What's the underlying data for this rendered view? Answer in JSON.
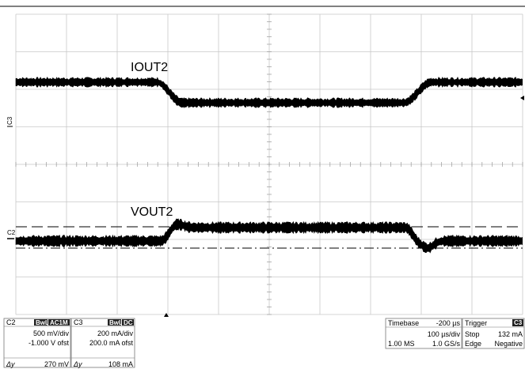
{
  "traces": {
    "iout": {
      "label": "IOUT2",
      "channel": "C3"
    },
    "vout": {
      "label": "VOUT2",
      "channel": "C2"
    }
  },
  "panels": {
    "c2": {
      "title": "C2",
      "badge1": "BwL",
      "badge2": "AC1M",
      "scale": "500 mV/div",
      "offset": "-1.000 V ofst",
      "dy_label": "Δy",
      "dy_value": "270 mV"
    },
    "c3": {
      "title": "C3",
      "badge1": "BwL",
      "badge2": "DC",
      "scale": "200 mA/div",
      "offset": "200.0 mA ofst",
      "dy_label": "Δy",
      "dy_value": "108 mA"
    },
    "timebase": {
      "title": "Timebase",
      "delay": "-200 µs",
      "time_per_div": "100 µs/div",
      "samples": "1.00 MS",
      "rate": "1.0 GS/s"
    },
    "trigger": {
      "title": "Trigger",
      "channel_badge": "C3",
      "mode": "Stop",
      "level": "132 mA",
      "type": "Edge",
      "slope": "Negative"
    }
  },
  "colors": {
    "trace": "#000000",
    "grid": "#c8c8c8",
    "background": "#ffffff"
  },
  "icons": {
    "trigger_marker": "triangle-up-icon",
    "level_marker": "arrow-left-icon"
  }
}
